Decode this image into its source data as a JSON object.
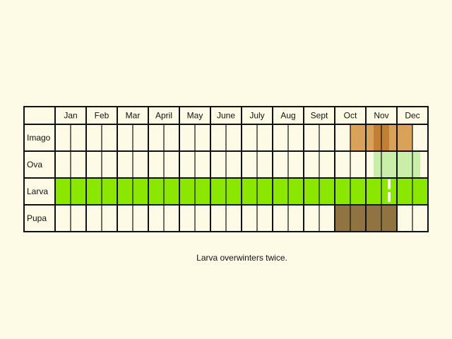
{
  "chart_data": {
    "type": "table",
    "months": [
      "Jan",
      "Feb",
      "Mar",
      "April",
      "May",
      "June",
      "July",
      "Aug",
      "Sept",
      "Oct",
      "Nov",
      "Dec"
    ],
    "columns_per_month": 2,
    "rows": [
      {
        "label": "Imago",
        "color": "#d9a25a",
        "accent_color": "#c07f35",
        "active_periods": [
          [
            9.5,
            11.5
          ]
        ],
        "peak_period": [
          10.25,
          10.75
        ]
      },
      {
        "label": "Ova",
        "color": "#c8eeaa",
        "active_periods": [
          [
            10.25,
            11.75
          ]
        ]
      },
      {
        "label": "Larva",
        "color": "#8be600",
        "active_periods": [
          [
            0,
            13
          ]
        ],
        "gap_at": 10.75
      },
      {
        "label": "Pupa",
        "color": "#8f7340",
        "active_periods": [
          [
            9,
            11
          ]
        ]
      }
    ]
  },
  "caption": "Larva overwinters twice."
}
